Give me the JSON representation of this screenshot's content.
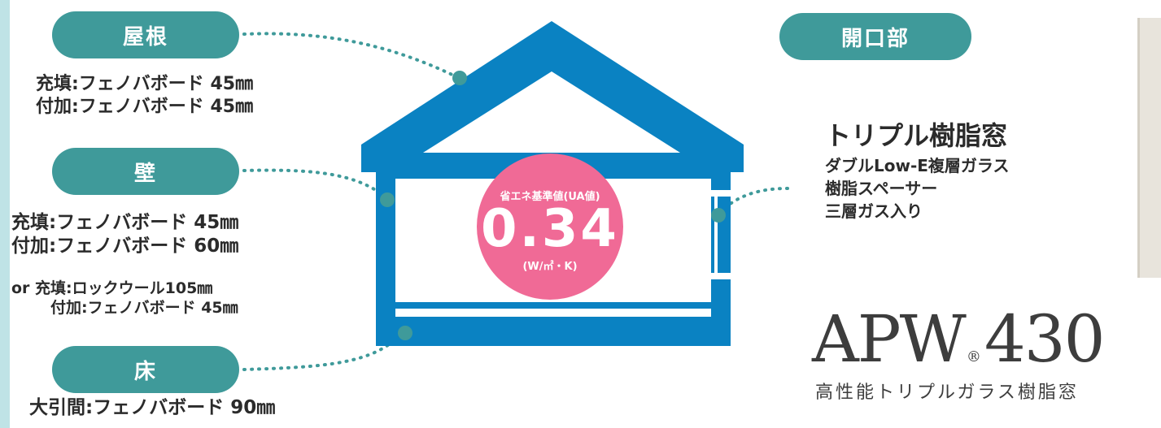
{
  "roof": {
    "label": "屋根",
    "lines": [
      "充填:フェノバボード 45㎜",
      "付加:フェノバボード 45㎜"
    ]
  },
  "wall": {
    "label": "壁",
    "lines": [
      "充填:フェノバボード 45㎜",
      "付加:フェノバボード 60㎜"
    ],
    "alt": [
      "or 充填:ロックウール105㎜",
      "付加:フェノバボード 45㎜"
    ]
  },
  "floor": {
    "label": "床",
    "lines": [
      "大引間:フェノバボード 90㎜"
    ]
  },
  "opening": {
    "label": "開口部"
  },
  "badge": {
    "caption": "省エネ基準値(UA値)",
    "value": "0.34",
    "unit": "(W/㎡・K)"
  },
  "window": {
    "title": "トリプル樹脂窓",
    "features": [
      "ダブルLow-E複層ガラス",
      "樹脂スペーサー",
      "三層ガス入り"
    ]
  },
  "product": {
    "name": "APW",
    "registered": "®",
    "number": "430",
    "subtitle": "高性能トリプルガラス樹脂窓"
  },
  "colors": {
    "teal": "#3f9a9a",
    "house_blue": "#0a82c2",
    "badge_pink": "#f06a96"
  }
}
